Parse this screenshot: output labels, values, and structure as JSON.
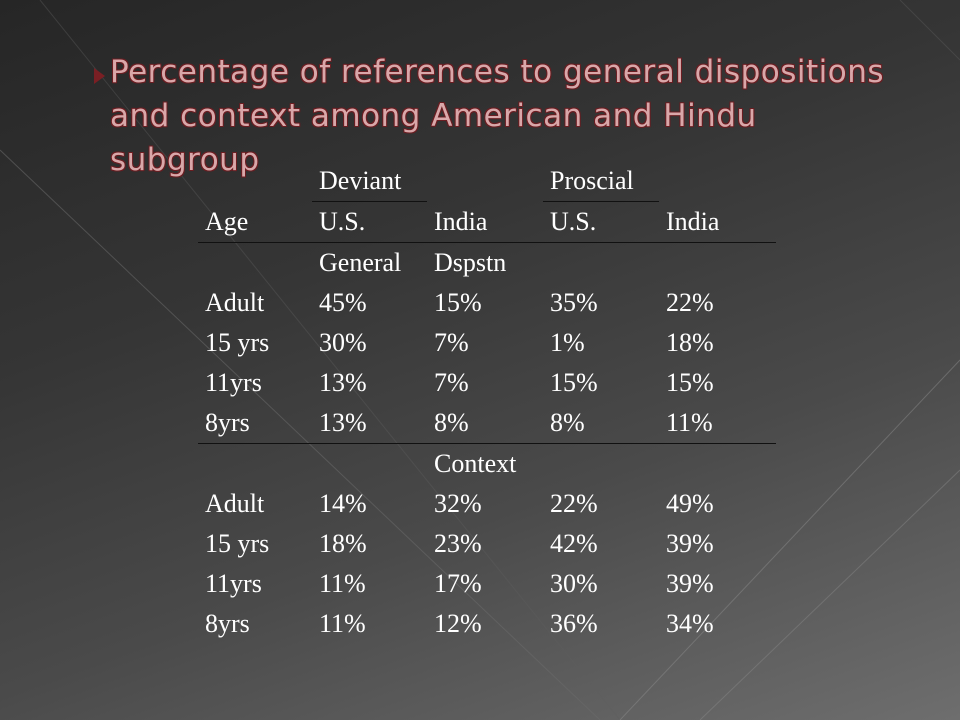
{
  "slide": {
    "title": "Percentage of references to general dispositions and context among American and Hindu subgroup",
    "accent_color": "#7a1f24",
    "title_color": "#d9a7a9"
  },
  "table": {
    "group_headers": {
      "deviant": "Deviant",
      "proscial": "Proscial"
    },
    "columns": [
      "Age",
      "U.S.",
      "India",
      "U.S.",
      "India"
    ],
    "sections": [
      {
        "labels": [
          "",
          "General",
          "Dspstn",
          "",
          ""
        ],
        "rows": [
          [
            "Adult",
            "45%",
            "15%",
            "35%",
            "22%"
          ],
          [
            "15 yrs",
            "30%",
            "7%",
            "1%",
            "18%"
          ],
          [
            "11yrs",
            "13%",
            "7%",
            "15%",
            "15%"
          ],
          [
            "8yrs",
            "13%",
            "8%",
            "8%",
            "11%"
          ]
        ]
      },
      {
        "labels": [
          "",
          "",
          "Context",
          "",
          ""
        ],
        "rows": [
          [
            "Adult",
            "14%",
            "32%",
            "22%",
            "49%"
          ],
          [
            "15 yrs",
            "18%",
            "23%",
            "42%",
            "39%"
          ],
          [
            "11yrs",
            "11%",
            "17%",
            "30%",
            "39%"
          ],
          [
            "8yrs",
            "11%",
            "12%",
            "36%",
            "34%"
          ]
        ]
      }
    ]
  }
}
